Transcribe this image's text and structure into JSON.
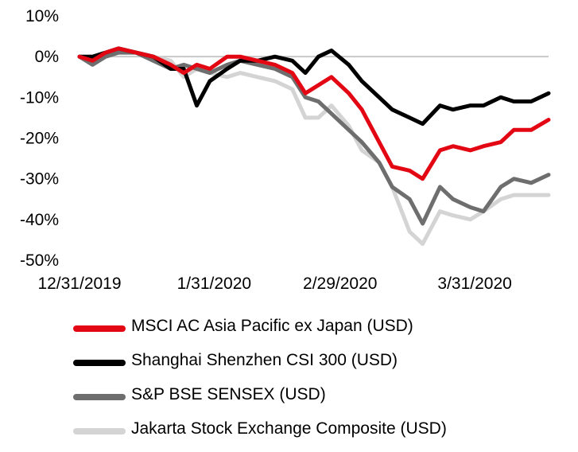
{
  "chart_data": {
    "type": "line",
    "ylim": [
      -0.5,
      0.1
    ],
    "y_ticks": [
      {
        "value": 0.1,
        "label": "10%"
      },
      {
        "value": 0.0,
        "label": "0%"
      },
      {
        "value": -0.1,
        "label": "-10%"
      },
      {
        "value": -0.2,
        "label": "-20%"
      },
      {
        "value": -0.3,
        "label": "-30%"
      },
      {
        "value": -0.4,
        "label": "-40%"
      },
      {
        "value": -0.5,
        "label": "-50%"
      }
    ],
    "x_ticks": [
      {
        "date": "2019-12-31",
        "label": "12/31/2019"
      },
      {
        "date": "2020-01-31",
        "label": "1/31/2020"
      },
      {
        "date": "2020-02-29",
        "label": "2/29/2020"
      },
      {
        "date": "2020-03-31",
        "label": "3/31/2020"
      }
    ],
    "x_range": [
      "2019-12-31",
      "2020-04-17"
    ],
    "grid": false,
    "zero_line": true,
    "legend_position": "bottom",
    "x": [
      "2019-12-31",
      "2020-01-03",
      "2020-01-06",
      "2020-01-09",
      "2020-01-13",
      "2020-01-17",
      "2020-01-21",
      "2020-01-24",
      "2020-01-27",
      "2020-01-30",
      "2020-02-03",
      "2020-02-06",
      "2020-02-10",
      "2020-02-14",
      "2020-02-18",
      "2020-02-21",
      "2020-02-24",
      "2020-02-27",
      "2020-03-02",
      "2020-03-05",
      "2020-03-09",
      "2020-03-12",
      "2020-03-16",
      "2020-03-19",
      "2020-03-23",
      "2020-03-26",
      "2020-03-30",
      "2020-04-02",
      "2020-04-06",
      "2020-04-09",
      "2020-04-13",
      "2020-04-17"
    ],
    "series": [
      {
        "name": "MSCI AC Asia Pacific ex Japan (USD)",
        "color": "#e30613",
        "values": [
          0.0,
          -0.01,
          0.01,
          0.02,
          0.01,
          0.0,
          -0.02,
          -0.04,
          -0.02,
          -0.03,
          0.0,
          0.0,
          -0.01,
          -0.02,
          -0.04,
          -0.09,
          -0.07,
          -0.05,
          -0.09,
          -0.13,
          -0.21,
          -0.27,
          -0.28,
          -0.3,
          -0.23,
          -0.22,
          -0.23,
          -0.22,
          -0.21,
          -0.18,
          -0.18,
          -0.155
        ]
      },
      {
        "name": "Shanghai Shenzhen CSI 300 (USD)",
        "color": "#000000",
        "values": [
          0.0,
          0.0,
          0.01,
          0.02,
          0.01,
          0.0,
          -0.03,
          -0.03,
          -0.12,
          -0.06,
          -0.03,
          -0.01,
          -0.01,
          0.0,
          -0.01,
          -0.04,
          0.0,
          0.015,
          -0.02,
          -0.06,
          -0.1,
          -0.13,
          -0.15,
          -0.165,
          -0.12,
          -0.13,
          -0.12,
          -0.12,
          -0.1,
          -0.11,
          -0.11,
          -0.09
        ]
      },
      {
        "name": "S&P BSE SENSEX (USD)",
        "color": "#6e6e6e",
        "values": [
          0.0,
          -0.02,
          0.0,
          0.01,
          0.01,
          -0.01,
          -0.03,
          -0.02,
          -0.03,
          -0.04,
          -0.02,
          -0.01,
          -0.02,
          -0.03,
          -0.05,
          -0.1,
          -0.11,
          -0.14,
          -0.18,
          -0.21,
          -0.26,
          -0.32,
          -0.35,
          -0.41,
          -0.32,
          -0.35,
          -0.37,
          -0.38,
          -0.32,
          -0.3,
          -0.31,
          -0.29
        ]
      },
      {
        "name": "Jakarta Stock Exchange Composite (USD)",
        "color": "#d4d4d4",
        "values": [
          0.0,
          0.0,
          0.01,
          0.02,
          0.01,
          0.0,
          -0.01,
          -0.05,
          -0.03,
          -0.04,
          -0.05,
          -0.04,
          -0.05,
          -0.06,
          -0.08,
          -0.15,
          -0.15,
          -0.12,
          -0.17,
          -0.23,
          -0.26,
          -0.32,
          -0.43,
          -0.46,
          -0.38,
          -0.39,
          -0.4,
          -0.38,
          -0.35,
          -0.34,
          -0.34,
          -0.34
        ]
      }
    ]
  }
}
